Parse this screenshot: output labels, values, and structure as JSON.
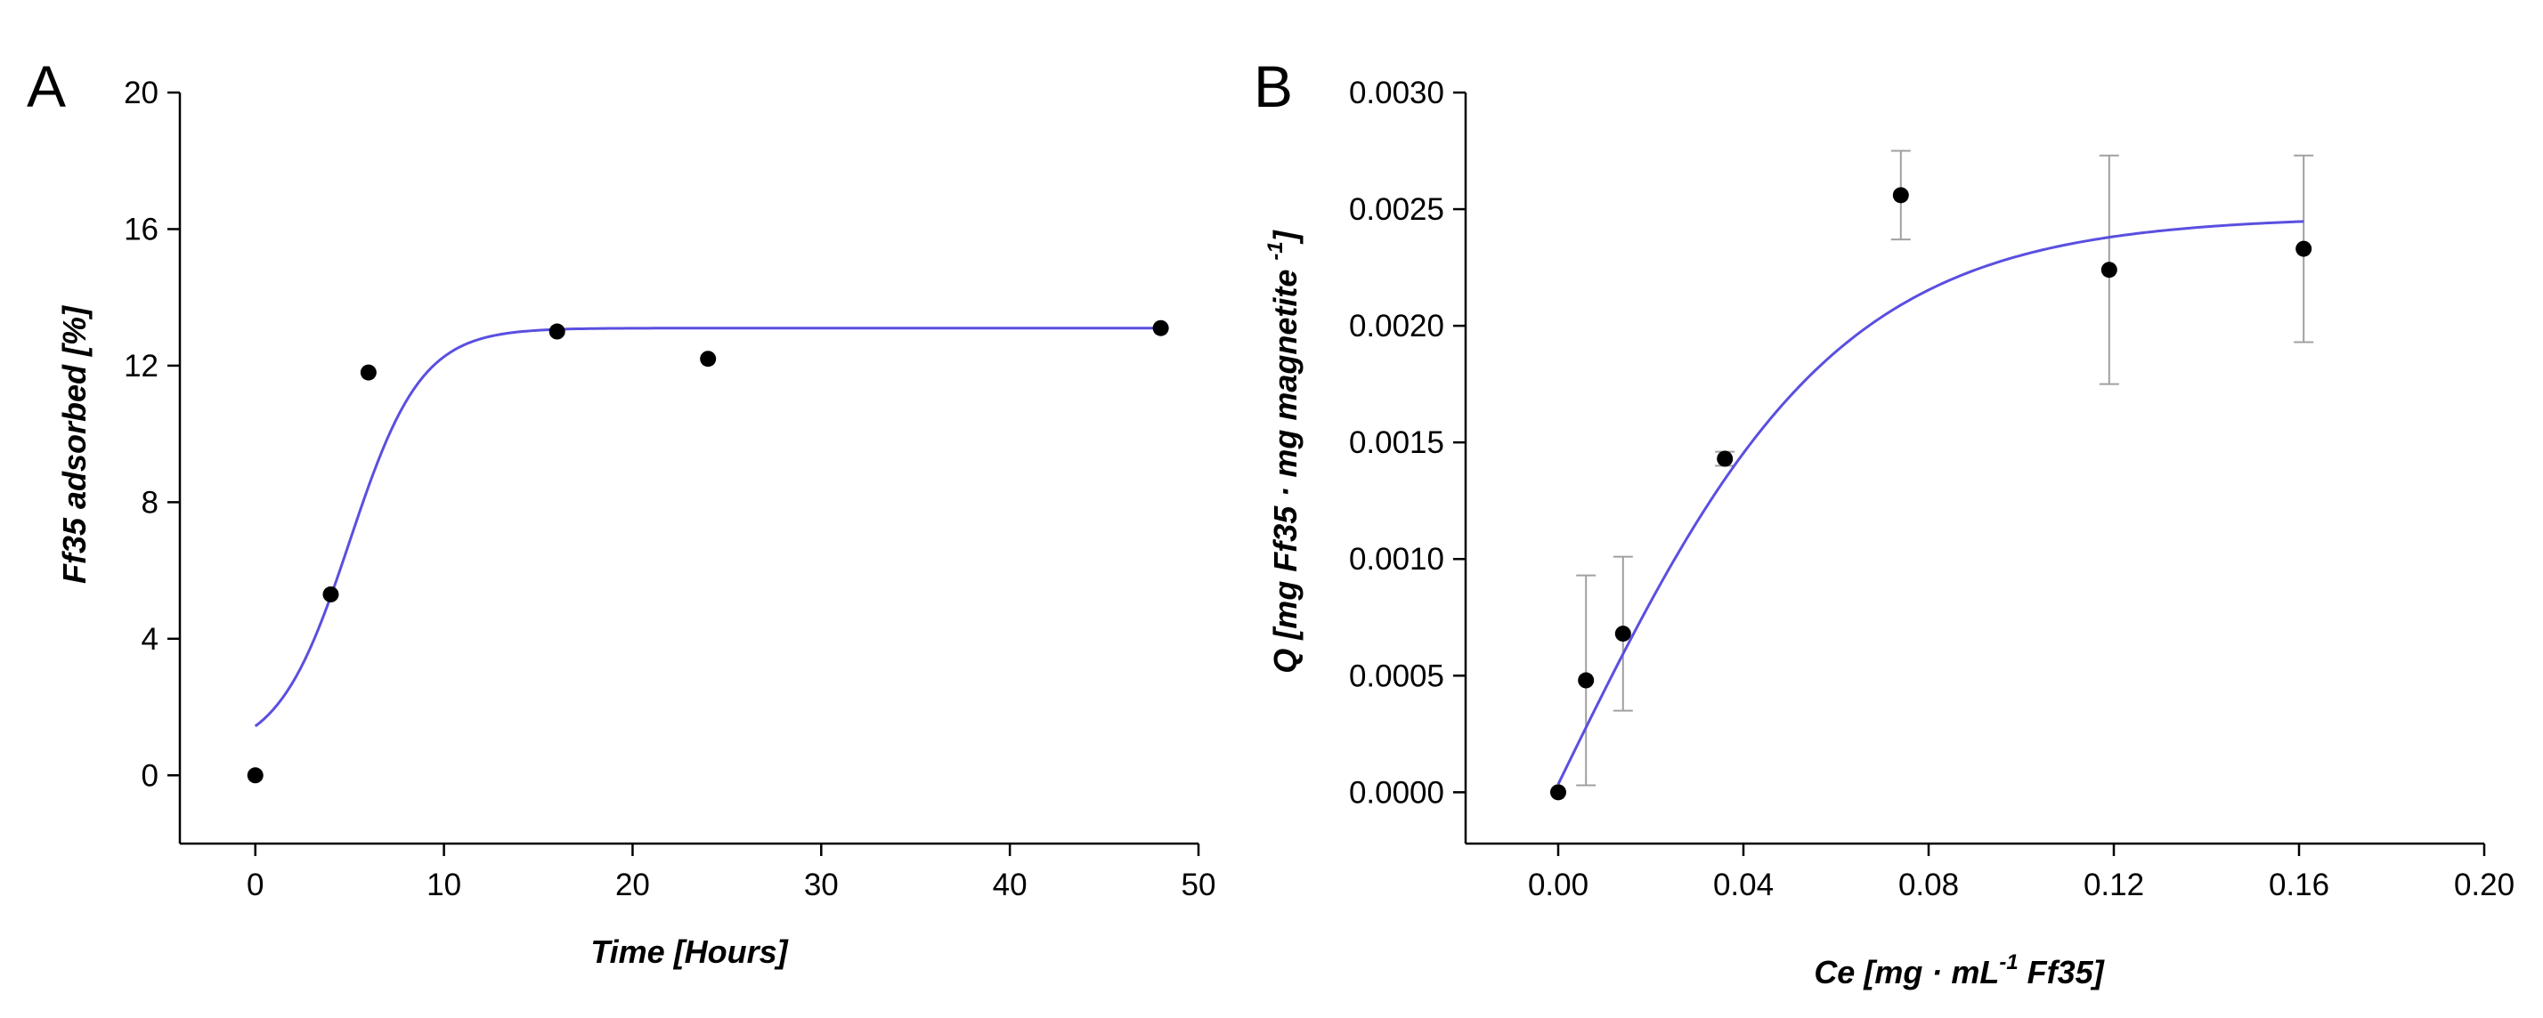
{
  "chart_data": [
    {
      "panel": "A",
      "type": "scatter",
      "xlabel": "Time [Hours]",
      "ylabel": "Ff35 adsorbed [%]",
      "xlim": [
        -4,
        50
      ],
      "ylim": [
        -2,
        20
      ],
      "xticks": [
        0,
        10,
        20,
        30,
        40,
        50
      ],
      "yticks": [
        0,
        4,
        8,
        12,
        16,
        20
      ],
      "grid": false,
      "series": [
        {
          "name": "data",
          "x": [
            0,
            4,
            6,
            16,
            24,
            48
          ],
          "y": [
            0.0,
            5.3,
            11.8,
            13.0,
            12.2,
            13.1
          ]
        },
        {
          "name": "fit",
          "kind": "sigmoid-fit",
          "x_range": [
            0,
            48
          ],
          "params": {
            "A1": 0.6,
            "A2": 13.1,
            "x0": 5.0,
            "dx": 1.9
          }
        }
      ],
      "marker_color": "#000000",
      "fit_color": "#5a4fe0"
    },
    {
      "panel": "B",
      "type": "scatter",
      "xlabel": {
        "main": "Ce [mg · mL",
        "sup": "-1",
        "tail": " Ff35]"
      },
      "ylabel": {
        "main": "Q [mg Ff35 · mg magnetite ",
        "sup": "-1",
        "tail": "]"
      },
      "xlim": [
        -0.02,
        0.2
      ],
      "ylim": [
        -0.00022,
        0.003
      ],
      "xticks": [
        "0.00",
        "0.04",
        "0.08",
        "0.12",
        "0.16",
        "0.20"
      ],
      "yticks": [
        "0.0000",
        "0.0005",
        "0.0010",
        "0.0015",
        "0.0020",
        "0.0025",
        "0.0030"
      ],
      "grid": false,
      "series": [
        {
          "name": "data",
          "x": [
            0.0,
            0.006,
            0.014,
            0.036,
            0.074,
            0.119,
            0.161
          ],
          "y": [
            0.0,
            0.00048,
            0.00068,
            0.00143,
            0.00256,
            0.00224,
            0.00233
          ],
          "error": [
            0.0,
            0.00045,
            0.00033,
            3e-05,
            0.00019,
            0.00049,
            0.0004
          ]
        },
        {
          "name": "fit",
          "kind": "sigmoid-fit",
          "x_range": [
            0.0,
            0.161
          ],
          "params": {
            "A1": -0.0024,
            "A2": 0.00247,
            "x0": 0.0,
            "dx": 0.03
          }
        }
      ],
      "marker_color": "#000000",
      "fit_color": "#5a4fe0",
      "errorbar_color": "#a0a0a0"
    }
  ]
}
